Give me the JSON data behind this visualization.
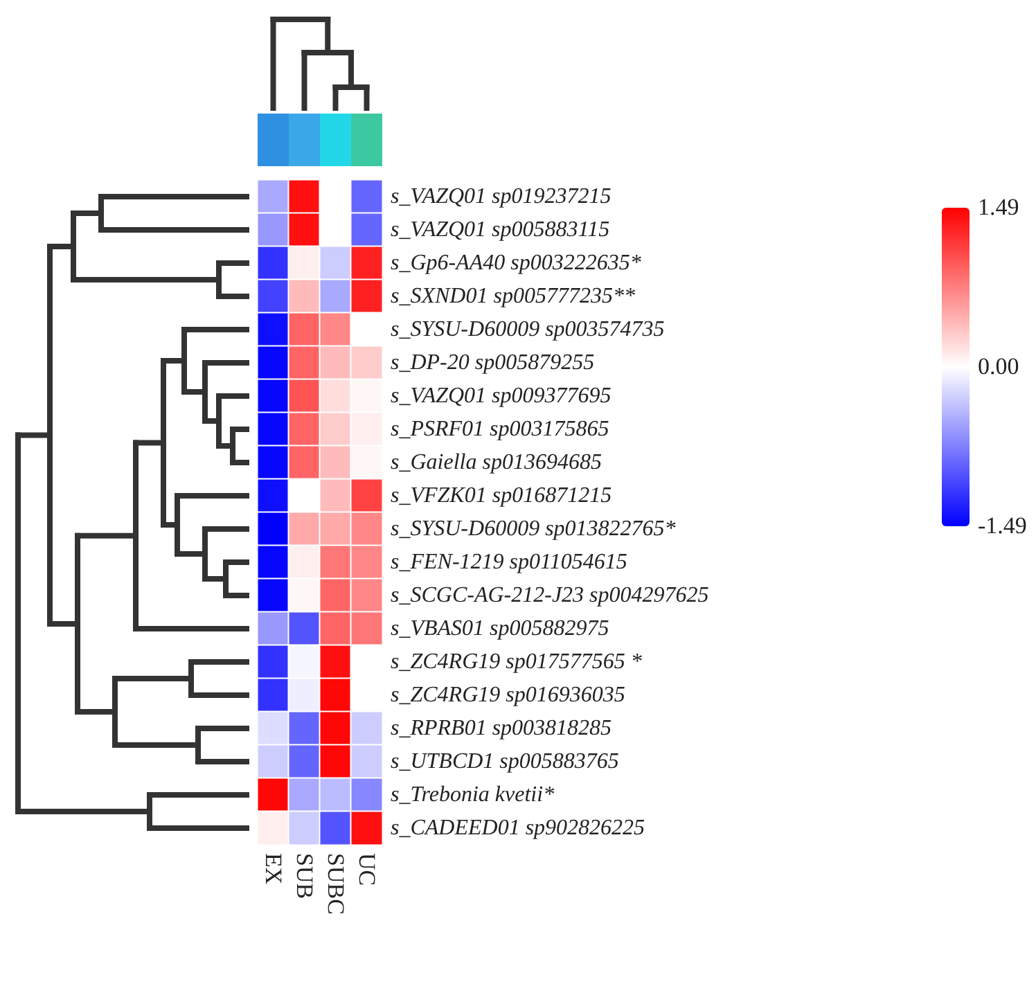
{
  "chart_data": {
    "type": "heatmap",
    "categories": [
      "EX",
      "SUB",
      "SUBC",
      "UC"
    ],
    "y_categories": [
      "s_VAZQ01 sp019237215",
      "s_VAZQ01 sp005883115",
      "s_Gp6-AA40 sp003222635*",
      "s_SXND01 sp005777235**",
      "s_SYSU-D60009 sp003574735",
      "s_DP-20 sp005879255",
      "s_VAZQ01 sp009377695",
      "s_PSRF01 sp003175865",
      "s_Gaiella sp013694685",
      "s_VFZK01 sp016871215",
      "s_SYSU-D60009 sp013822765*",
      "s_FEN-1219 sp011054615",
      "s_SCGC-AG-212-J23 sp004297625",
      "s_VBAS01 sp005882975",
      "s_ZC4RG19 sp017577565 *",
      "s_ZC4RG19 sp016936035",
      "s_RPRB01 sp003818285",
      "s_UTBCD1 sp005883765",
      "s_Trebonia kvetii*",
      "s_CADEED01 sp902826225"
    ],
    "cells": [
      [
        -0.5,
        1.4,
        0.0,
        -0.9
      ],
      [
        -0.6,
        1.4,
        0.0,
        -0.9
      ],
      [
        -1.2,
        0.1,
        -0.3,
        1.3
      ],
      [
        -1.1,
        0.4,
        -0.5,
        1.3
      ],
      [
        -1.4,
        0.9,
        0.7,
        0.0
      ],
      [
        -1.45,
        0.9,
        0.4,
        0.3
      ],
      [
        -1.45,
        1.0,
        0.2,
        0.05
      ],
      [
        -1.45,
        0.9,
        0.3,
        0.1
      ],
      [
        -1.45,
        0.9,
        0.4,
        0.05
      ],
      [
        -1.4,
        0.0,
        0.4,
        1.1
      ],
      [
        -1.49,
        0.5,
        0.5,
        0.7
      ],
      [
        -1.45,
        0.1,
        0.8,
        0.7
      ],
      [
        -1.45,
        0.05,
        0.9,
        0.7
      ],
      [
        -0.6,
        -1.0,
        0.9,
        0.8
      ],
      [
        -1.2,
        -0.05,
        1.4,
        0.0
      ],
      [
        -1.2,
        -0.1,
        1.45,
        0.0
      ],
      [
        -0.2,
        -0.9,
        1.45,
        -0.3
      ],
      [
        -0.3,
        -0.9,
        1.45,
        -0.3
      ],
      [
        1.45,
        -0.5,
        -0.4,
        -0.7
      ],
      [
        0.1,
        -0.3,
        -1.0,
        1.4
      ]
    ],
    "clim": [
      -1.49,
      1.49
    ],
    "cticks": [
      1.49,
      {
        "value": 0,
        "label": "0.00"
      },
      -1.49
    ]
  }
}
